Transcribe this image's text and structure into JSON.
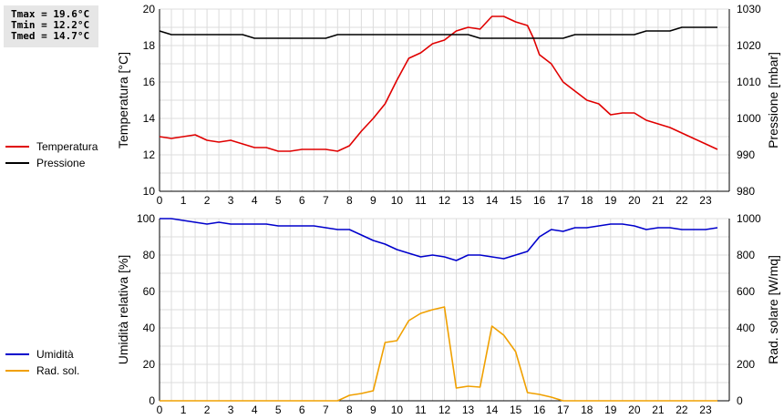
{
  "stats": {
    "tmax": "Tmax = 19.6°C",
    "tmin": "Tmin = 12.2°C",
    "tmed": "Tmed = 14.7°C"
  },
  "legend_top": [
    {
      "label": "Temperatura",
      "color": "#e00000"
    },
    {
      "label": "Pressione",
      "color": "#000000"
    }
  ],
  "legend_bottom": [
    {
      "label": "Umidità",
      "color": "#0000cc"
    },
    {
      "label": "Rad. sol.",
      "color": "#f0a000"
    }
  ],
  "chart_data": [
    {
      "type": "line",
      "ylabel": "Temperatura [°C]",
      "y2label": "Pressione [mbar]",
      "xlim": [
        0,
        24
      ],
      "ylim": [
        10,
        20
      ],
      "y2lim": [
        980,
        1030
      ],
      "xticks": [
        "0",
        "1",
        "2",
        "3",
        "4",
        "5",
        "6",
        "7",
        "8",
        "9",
        "10",
        "11",
        "12",
        "13",
        "14",
        "15",
        "16",
        "17",
        "18",
        "19",
        "20",
        "21",
        "22",
        "23"
      ],
      "yticks": [
        "10",
        "12",
        "14",
        "16",
        "18",
        "20"
      ],
      "y2ticks": [
        "980",
        "990",
        "1000",
        "1010",
        "1020",
        "1030"
      ],
      "grid": true,
      "series": [
        {
          "name": "Temperatura",
          "axis": "left",
          "color": "#e00000",
          "x": [
            0,
            0.5,
            1,
            1.5,
            2,
            2.5,
            3,
            3.5,
            4,
            4.5,
            5,
            5.5,
            6,
            6.5,
            7,
            7.5,
            8,
            8.5,
            9,
            9.5,
            10,
            10.5,
            11,
            11.5,
            12,
            12.5,
            13,
            13.5,
            14,
            14.5,
            15,
            15.25,
            15.5,
            15.75,
            16,
            16.5,
            17,
            17.5,
            18,
            18.5,
            19,
            19.5,
            20,
            20.5,
            21,
            21.5,
            22,
            22.5,
            23,
            23.5
          ],
          "y": [
            13.0,
            12.9,
            13.0,
            13.1,
            12.8,
            12.7,
            12.8,
            12.6,
            12.4,
            12.4,
            12.2,
            12.2,
            12.3,
            12.3,
            12.3,
            12.2,
            12.5,
            13.3,
            14.0,
            14.8,
            16.1,
            17.3,
            17.6,
            18.1,
            18.3,
            18.8,
            19.0,
            18.9,
            19.6,
            19.6,
            19.3,
            19.2,
            19.1,
            18.4,
            17.5,
            17.0,
            16.0,
            15.5,
            15.0,
            14.8,
            14.2,
            14.3,
            14.3,
            13.9,
            13.7,
            13.5,
            13.2,
            12.9,
            12.6,
            12.3
          ]
        },
        {
          "name": "Pressione",
          "axis": "right",
          "color": "#000000",
          "x": [
            0,
            0.5,
            1,
            2,
            3,
            3.5,
            4,
            5,
            6,
            7,
            7.5,
            8,
            9,
            10,
            11,
            12,
            12.5,
            13,
            13.5,
            14,
            15,
            16,
            17,
            17.5,
            18,
            19,
            20,
            20.5,
            21,
            21.5,
            22,
            23,
            23.5
          ],
          "y": [
            1024,
            1023,
            1023,
            1023,
            1023,
            1023,
            1022,
            1022,
            1022,
            1022,
            1023,
            1023,
            1023,
            1023,
            1023,
            1023,
            1023,
            1023,
            1022,
            1022,
            1022,
            1022,
            1022,
            1023,
            1023,
            1023,
            1023,
            1024,
            1024,
            1024,
            1025,
            1025,
            1025
          ]
        }
      ]
    },
    {
      "type": "line",
      "ylabel": "Umidità relativa [%]",
      "y2label": "Rad. solare [W/mq]",
      "xlim": [
        0,
        24
      ],
      "ylim": [
        0,
        100
      ],
      "y2lim": [
        0,
        1000
      ],
      "xticks": [
        "0",
        "1",
        "2",
        "3",
        "4",
        "5",
        "6",
        "7",
        "8",
        "9",
        "10",
        "11",
        "12",
        "13",
        "14",
        "15",
        "16",
        "17",
        "18",
        "19",
        "20",
        "21",
        "22",
        "23"
      ],
      "yticks": [
        "0",
        "20",
        "40",
        "60",
        "80",
        "100"
      ],
      "y2ticks": [
        "0",
        "200",
        "400",
        "600",
        "800",
        "1000"
      ],
      "grid": true,
      "series": [
        {
          "name": "Umidità",
          "axis": "left",
          "color": "#0000cc",
          "x": [
            0,
            0.5,
            1,
            1.5,
            2,
            2.5,
            3,
            3.5,
            4,
            4.5,
            5,
            5.5,
            6,
            6.5,
            7,
            7.5,
            8,
            8.5,
            9,
            9.5,
            10,
            10.5,
            11,
            11.5,
            12,
            12.5,
            13,
            13.5,
            14,
            14.5,
            15,
            15.5,
            16,
            16.5,
            17,
            17.5,
            18,
            18.5,
            19,
            19.5,
            20,
            20.5,
            21,
            21.5,
            22,
            22.5,
            23,
            23.5
          ],
          "y": [
            100,
            100,
            99,
            98,
            97,
            98,
            97,
            97,
            97,
            97,
            96,
            96,
            96,
            96,
            95,
            94,
            94,
            91,
            88,
            86,
            83,
            81,
            79,
            80,
            79,
            77,
            80,
            80,
            79,
            78,
            80,
            82,
            90,
            94,
            93,
            95,
            95,
            96,
            97,
            97,
            96,
            94,
            95,
            95,
            94,
            94,
            94,
            95
          ]
        },
        {
          "name": "Rad. sol.",
          "axis": "right",
          "color": "#f0a000",
          "x": [
            0,
            1,
            2,
            3,
            4,
            5,
            6,
            7,
            7.5,
            8,
            8.5,
            9,
            9.5,
            10,
            10.5,
            11,
            11.5,
            12,
            12.5,
            13,
            13.5,
            14,
            14.5,
            15,
            15.5,
            16,
            16.5,
            17,
            18,
            19,
            20,
            21,
            22,
            23,
            23.5
          ],
          "y": [
            0,
            0,
            0,
            0,
            0,
            0,
            0,
            0,
            0,
            30,
            40,
            55,
            320,
            330,
            440,
            480,
            500,
            515,
            70,
            80,
            75,
            410,
            360,
            270,
            45,
            35,
            20,
            0,
            0,
            0,
            0,
            0,
            0,
            0,
            0
          ]
        }
      ]
    }
  ]
}
